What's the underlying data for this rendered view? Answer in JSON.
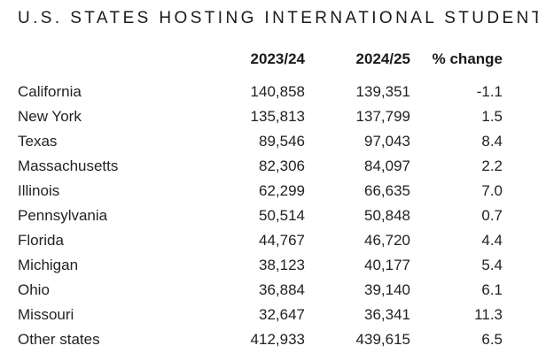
{
  "title": "U.S. STATES HOSTING INTERNATIONAL STUDENTS",
  "columns": {
    "state": "",
    "year1": "2023/24",
    "year2": "2024/25",
    "change": "% change"
  },
  "rows": [
    {
      "state": "California",
      "year1": "140,858",
      "year2": "139,351",
      "change": "-1.1"
    },
    {
      "state": "New York",
      "year1": "135,813",
      "year2": "137,799",
      "change": "1.5"
    },
    {
      "state": "Texas",
      "year1": "89,546",
      "year2": "97,043",
      "change": "8.4"
    },
    {
      "state": "Massachusetts",
      "year1": "82,306",
      "year2": "84,097",
      "change": "2.2"
    },
    {
      "state": "Illinois",
      "year1": "62,299",
      "year2": "66,635",
      "change": "7.0"
    },
    {
      "state": "Pennsylvania",
      "year1": "50,514",
      "year2": "50,848",
      "change": "0.7"
    },
    {
      "state": "Florida",
      "year1": "44,767",
      "year2": "46,720",
      "change": "4.4"
    },
    {
      "state": "Michigan",
      "year1": "38,123",
      "year2": "40,177",
      "change": "5.4"
    },
    {
      "state": "Ohio",
      "year1": "36,884",
      "year2": "39,140",
      "change": "6.1"
    },
    {
      "state": "Missouri",
      "year1": "32,647",
      "year2": "36,341",
      "change": "11.3"
    },
    {
      "state": "Other states",
      "year1": "412,933",
      "year2": "439,615",
      "change": "6.5"
    }
  ]
}
